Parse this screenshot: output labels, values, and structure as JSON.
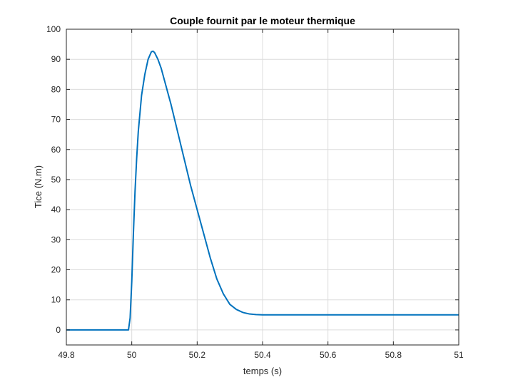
{
  "chart_data": {
    "type": "line",
    "title": "Couple fournit par le moteur thermique",
    "xlabel": "temps (s)",
    "ylabel": "Tice (N.m)",
    "xlim": [
      49.8,
      51
    ],
    "ylim": [
      -5,
      100
    ],
    "xticks": [
      49.8,
      50,
      50.2,
      50.4,
      50.6,
      50.8,
      51
    ],
    "xtick_labels": [
      "49.8",
      "50",
      "50.2",
      "50.4",
      "50.6",
      "50.8",
      "51"
    ],
    "yticks": [
      0,
      10,
      20,
      30,
      40,
      50,
      60,
      70,
      80,
      90,
      100
    ],
    "ytick_labels": [
      "0",
      "10",
      "20",
      "30",
      "40",
      "50",
      "60",
      "70",
      "80",
      "90",
      "100"
    ],
    "grid": true,
    "series": [
      {
        "color": "#0072BD",
        "x": [
          49.8,
          49.99,
          49.995,
          50.0,
          50.005,
          50.01,
          50.015,
          50.02,
          50.025,
          50.03,
          50.04,
          50.05,
          50.06,
          50.065,
          50.07,
          50.08,
          50.09,
          50.1,
          50.12,
          50.14,
          50.16,
          50.18,
          50.2,
          50.22,
          50.24,
          50.26,
          50.28,
          50.3,
          50.32,
          50.34,
          50.36,
          50.38,
          50.4,
          50.45,
          50.5,
          51.0
        ],
        "y": [
          0,
          0,
          4,
          16,
          32,
          46,
          57,
          66,
          72,
          78,
          85,
          90,
          92.5,
          92.7,
          92.2,
          90,
          87,
          83,
          75,
          66,
          57,
          48,
          40,
          32,
          24,
          17,
          12,
          8.5,
          6.8,
          5.8,
          5.3,
          5.1,
          5.0,
          5.0,
          5.0,
          5.0
        ]
      }
    ]
  }
}
